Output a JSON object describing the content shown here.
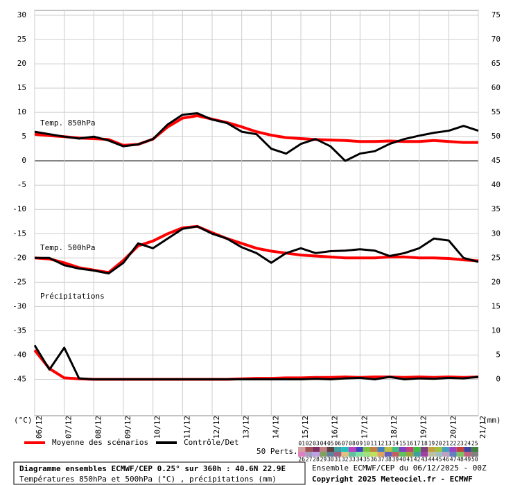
{
  "chart_data": {
    "type": "line",
    "categories": [
      "06/12",
      null,
      "07/12",
      null,
      "08/12",
      null,
      "09/12",
      null,
      "10/12",
      null,
      "11/12",
      null,
      "12/12",
      null,
      "13/12",
      null,
      "14/12",
      null,
      "15/12",
      null,
      "16/12",
      null,
      "17/12",
      null,
      "18/12",
      null,
      "19/12",
      null,
      "20/12",
      null,
      "21/12"
    ],
    "ylim": [
      -52.5,
      31
    ],
    "yticks": [
      -45,
      -40,
      -35,
      -30,
      -25,
      -20,
      -15,
      -10,
      -5,
      0,
      5,
      10,
      15,
      20,
      25,
      30
    ],
    "y2lim": [
      -7.5,
      76
    ],
    "y2ticks": [
      0,
      5,
      10,
      15,
      20,
      25,
      30,
      35,
      40,
      45,
      50,
      55,
      60,
      65,
      70,
      75
    ],
    "ylabel": "(°C)",
    "y2label": "(mm)",
    "grid": true,
    "panels": [
      {
        "label": "Temp. 850hPa",
        "axis": "y"
      },
      {
        "label": "Temp. 500hPa",
        "axis": "y"
      },
      {
        "label": "Précipitations",
        "axis": "y2"
      }
    ],
    "series": [
      {
        "name": "Moyenne des scénarios",
        "color": "#ff0000",
        "values": [
          [
            5.5,
            5.2,
            5,
            4.7,
            4.6,
            4.4,
            3.2,
            3.4,
            4.5,
            7,
            8.8,
            9.3,
            8.6,
            7.9,
            7,
            6,
            5.3,
            4.8,
            4.6,
            4.4,
            4.3,
            4.2,
            4,
            4,
            4.1,
            4,
            4,
            4.2,
            4,
            3.8,
            3.8
          ],
          [
            -20,
            -20.2,
            -21,
            -22,
            -22.5,
            -23,
            -20.5,
            -17.5,
            -16.5,
            -15,
            -13.8,
            -13.5,
            -14.8,
            -16,
            -17,
            -18,
            -18.6,
            -19,
            -19.4,
            -19.6,
            -19.8,
            -20,
            -20,
            -20,
            -19.8,
            -19.8,
            -20,
            -20,
            -20.1,
            -20.4,
            -20.6
          ],
          [
            6,
            2.2,
            0.3,
            0.1,
            0,
            0,
            0,
            0,
            0,
            0,
            0,
            0,
            0,
            0,
            0.1,
            0.2,
            0.2,
            0.3,
            0.3,
            0.4,
            0.4,
            0.5,
            0.4,
            0.5,
            0.5,
            0.4,
            0.5,
            0.4,
            0.5,
            0.4,
            0.5
          ]
        ]
      },
      {
        "name": "Contrôle/Det",
        "color": "#000000",
        "values": [
          [
            6,
            5.5,
            5,
            4.6,
            5,
            4.2,
            3,
            3.4,
            4.5,
            7.5,
            9.5,
            9.8,
            8.5,
            7.8,
            6,
            5.5,
            2.5,
            1.5,
            3.5,
            4.5,
            3,
            0,
            1.5,
            2,
            3.5,
            4.5,
            5.2,
            5.8,
            6.2,
            7.2,
            6.2
          ],
          [
            -20,
            -20,
            -21.5,
            -22.2,
            -22.6,
            -23.2,
            -21,
            -17,
            -18,
            -16,
            -14,
            -13.5,
            -15,
            -16,
            -17.8,
            -19,
            -21,
            -19,
            -18,
            -19,
            -18.6,
            -18.5,
            -18.2,
            -18.5,
            -19.6,
            -19,
            -18,
            -16,
            -16.4,
            -20,
            -20.8
          ],
          [
            7,
            2,
            6.5,
            0.2,
            0,
            0,
            0,
            0,
            0,
            0,
            0,
            0,
            0,
            0,
            0,
            0,
            0,
            0,
            0,
            0.1,
            0,
            0.2,
            0.3,
            0,
            0.5,
            0,
            0.2,
            0.1,
            0.3,
            0.2,
            0.5
          ]
        ]
      }
    ],
    "perturbations": {
      "label": "50 Perts.",
      "names": [
        "01",
        "02",
        "03",
        "04",
        "05",
        "06",
        "07",
        "08",
        "09",
        "10",
        "11",
        "12",
        "13",
        "14",
        "15",
        "16",
        "17",
        "18",
        "19",
        "20",
        "21",
        "22",
        "23",
        "24",
        "25",
        "26",
        "27",
        "28",
        "29",
        "30",
        "31",
        "32",
        "33",
        "34",
        "35",
        "36",
        "37",
        "38",
        "39",
        "40",
        "41",
        "42",
        "43",
        "44",
        "45",
        "46",
        "47",
        "48",
        "49",
        "50"
      ],
      "colors": [
        "#d4a0a0",
        "#a05050",
        "#803060",
        "#c08080",
        "#604040",
        "#40a0a0",
        "#20c0c0",
        "#c040c0",
        "#4040c0",
        "#80c040",
        "#c08040",
        "#4080c0",
        "#c0c040",
        "#40c080",
        "#8040c0",
        "#c04080",
        "#40c040",
        "#804080",
        "#c0a040",
        "#a0c040",
        "#40a0c0",
        "#a040c0",
        "#c04040",
        "#4040a0",
        "#408040",
        "#e080c0",
        "#a0a0c0",
        "#c0a0e0",
        "#80a060",
        "#6080a0",
        "#a06080",
        "#e0c080",
        "#60c0a0",
        "#80e0a0",
        "#a0e080",
        "#c0e060",
        "#e0a060",
        "#6060c0",
        "#c06060",
        "#60c060",
        "#a0a040",
        "#40a0a0",
        "#a040a0",
        "#c0c0a0",
        "#a0c0c0",
        "#c0a0c0",
        "#6080c0",
        "#80c060",
        "#c06080",
        "#808080"
      ]
    },
    "footer": {
      "title": "Diagramme ensembles ECMWF/CEP 0.25° sur 360h : 40.6N 22.9E",
      "subtitle": "Températures 850hPa et 500hPa (°C) , précipitations (mm)",
      "run": "Ensemble ECMWF/CEP du 06/12/2025 - 00Z",
      "copyright": "Copyright 2025 Meteociel.fr - ECMWF"
    }
  }
}
